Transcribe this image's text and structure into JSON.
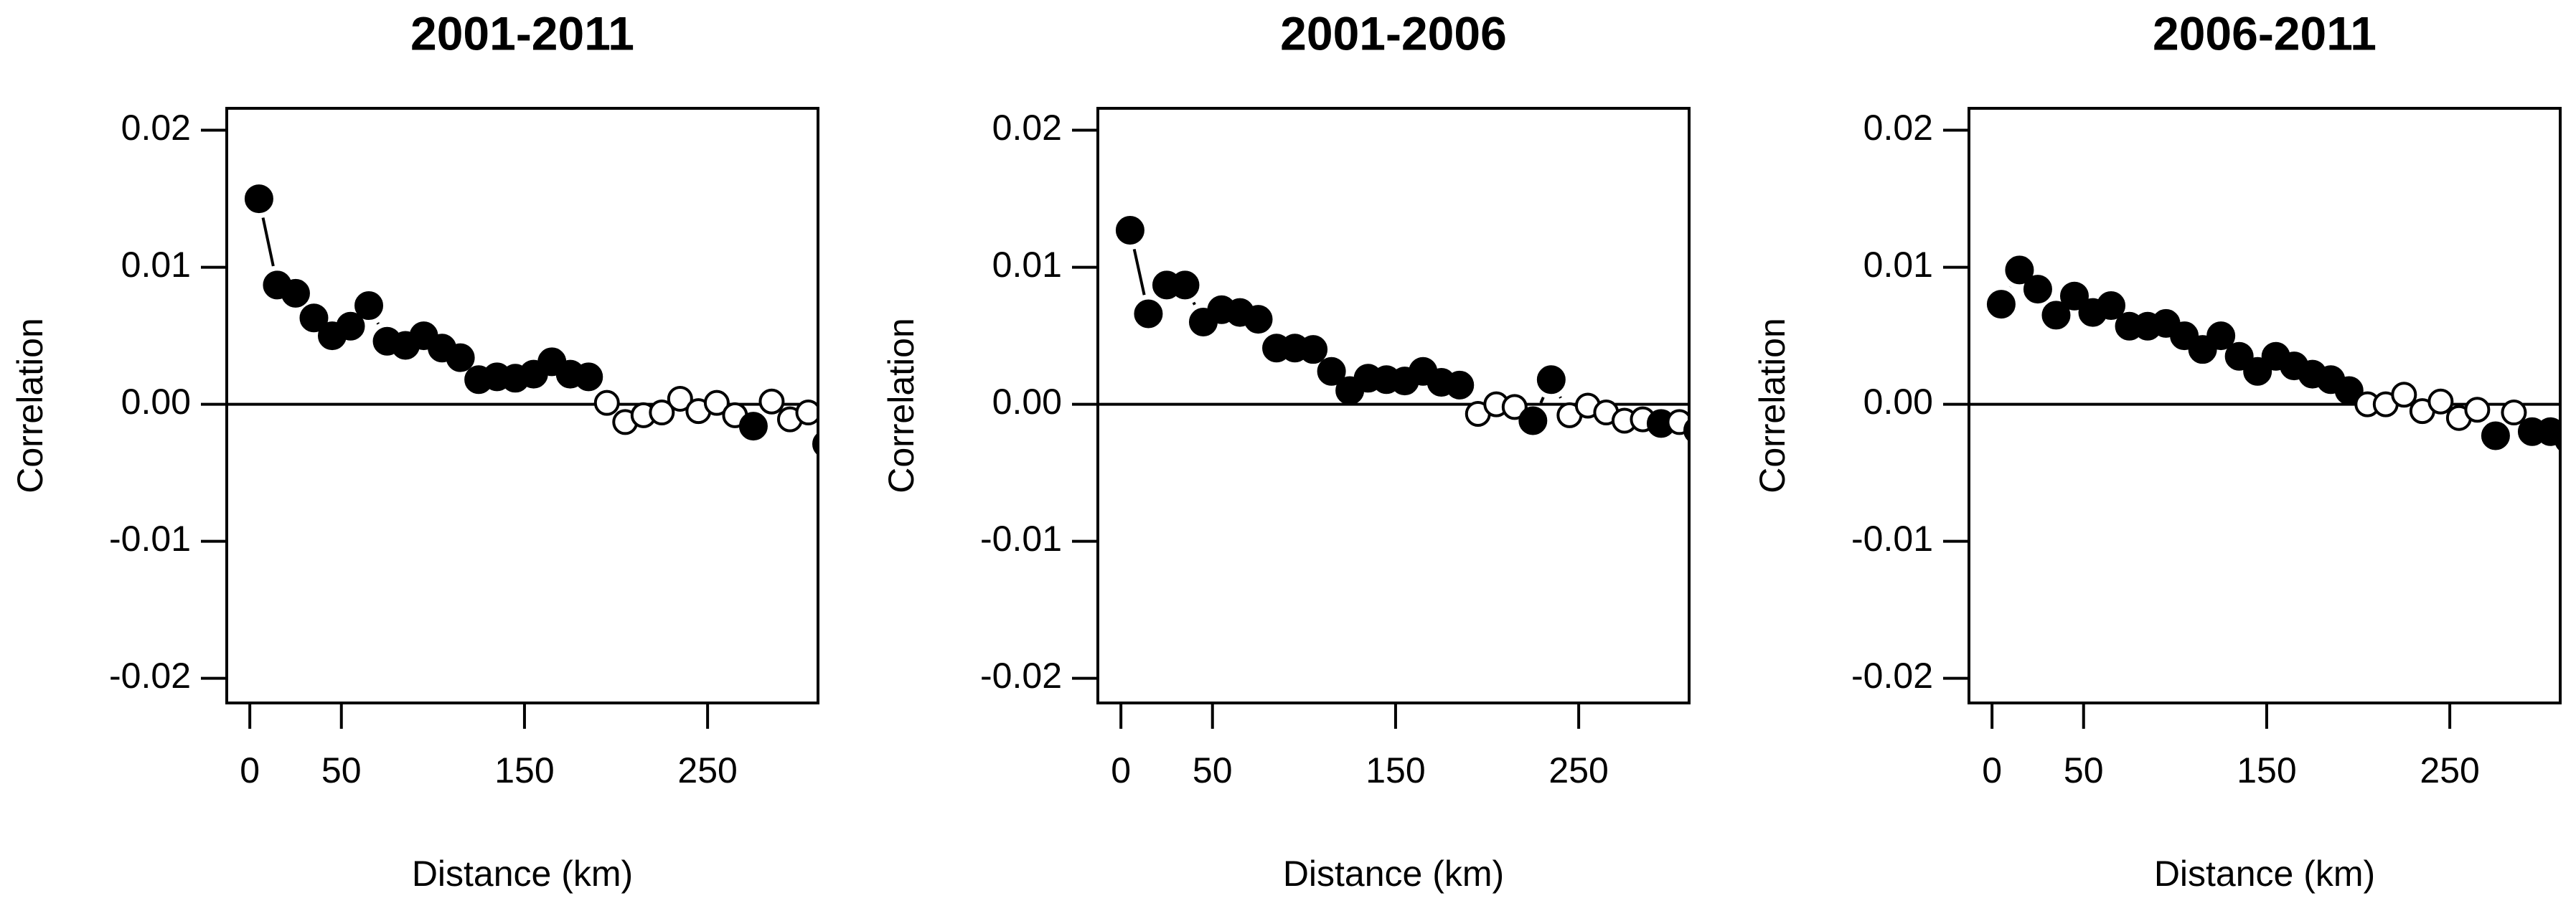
{
  "chart_data": [
    {
      "type": "scatter",
      "title": "2001-2011",
      "x_label": "Distance (km)",
      "y_label": "Correlation",
      "x": [
        5,
        15,
        25,
        35,
        45,
        55,
        65,
        75,
        85,
        95,
        105,
        115,
        125,
        135,
        145,
        155,
        165,
        175,
        185,
        195,
        205,
        215,
        225,
        235,
        245,
        255,
        265,
        275,
        285,
        295,
        305,
        315
      ],
      "values": [
        0.015,
        0.0087,
        0.0081,
        0.0063,
        0.005,
        0.0057,
        0.0072,
        0.0046,
        0.0043,
        0.005,
        0.0041,
        0.0034,
        0.0018,
        0.002,
        0.0019,
        0.0022,
        0.0031,
        0.0022,
        0.002,
        0.0001,
        -0.0013,
        -0.0008,
        -0.0006,
        0.0004,
        -0.0005,
        0.0001,
        -0.0008,
        -0.0016,
        0.0002,
        -0.0011,
        -0.0006,
        -0.0029
      ],
      "filled": [
        true,
        true,
        true,
        true,
        true,
        true,
        true,
        true,
        true,
        true,
        true,
        true,
        true,
        true,
        true,
        true,
        true,
        true,
        true,
        false,
        false,
        false,
        false,
        false,
        false,
        false,
        false,
        true,
        false,
        false,
        false,
        true
      ],
      "color": "#000000",
      "reference_line": 0,
      "xlim": [
        -12.6,
        310.3
      ],
      "xticks": [
        0,
        50,
        150,
        250
      ],
      "ylim": [
        -0.0218,
        0.0216
      ],
      "yticks": [
        0.02,
        0.01,
        {
          "value": 0,
          "label": "0.00"
        },
        -0.01,
        -0.02
      ]
    },
    {
      "type": "scatter",
      "title": "2001-2006",
      "x_label": "Distance (km)",
      "y_label": "Correlation",
      "x": [
        5,
        15,
        25,
        35,
        45,
        55,
        65,
        75,
        85,
        95,
        105,
        115,
        125,
        135,
        145,
        155,
        165,
        175,
        185,
        195,
        205,
        215,
        225,
        235,
        245,
        255,
        265,
        275,
        285,
        295,
        305,
        315
      ],
      "values": [
        0.0127,
        0.0066,
        0.0087,
        0.0087,
        0.006,
        0.0069,
        0.0067,
        0.0062,
        0.0041,
        0.0041,
        0.004,
        0.0024,
        0.001,
        0.0019,
        0.0018,
        0.0017,
        0.0024,
        0.0016,
        0.0014,
        -0.0007,
        0,
        -0.0002,
        -0.0012,
        0.0018,
        -0.0008,
        -0.0001,
        -0.0006,
        -0.0012,
        -0.0011,
        -0.0014,
        -0.0013,
        -0.0019
      ],
      "filled": [
        true,
        true,
        true,
        true,
        true,
        true,
        true,
        true,
        true,
        true,
        true,
        true,
        true,
        true,
        true,
        true,
        true,
        true,
        true,
        false,
        false,
        false,
        true,
        true,
        false,
        false,
        false,
        false,
        false,
        true,
        false,
        true
      ],
      "color": "#000000",
      "reference_line": 0,
      "xlim": [
        -12.6,
        310.3
      ],
      "xticks": [
        0,
        50,
        150,
        250
      ],
      "ylim": [
        -0.0218,
        0.0216
      ],
      "yticks": [
        0.02,
        0.01,
        {
          "value": 0,
          "label": "0.00"
        },
        -0.01,
        -0.02
      ]
    },
    {
      "type": "scatter",
      "title": "2006-2011",
      "x_label": "Distance (km)",
      "y_label": "Correlation",
      "x": [
        5,
        15,
        25,
        35,
        45,
        55,
        65,
        75,
        85,
        95,
        105,
        115,
        125,
        135,
        145,
        155,
        165,
        175,
        185,
        195,
        205,
        215,
        225,
        235,
        245,
        255,
        265,
        275,
        285,
        295,
        305,
        315
      ],
      "values": [
        0.0073,
        0.0098,
        0.0084,
        0.0065,
        0.0079,
        0.0067,
        0.0072,
        0.0057,
        0.0057,
        0.0059,
        0.005,
        0.004,
        0.005,
        0.0035,
        0.0024,
        0.0035,
        0.0028,
        0.0022,
        0.0018,
        0.001,
        0,
        0,
        0.0007,
        -0.0005,
        0.0002,
        -0.001,
        -0.0004,
        -0.0023,
        -0.0006,
        -0.002,
        -0.002,
        -0.0026
      ],
      "filled": [
        true,
        true,
        true,
        true,
        true,
        true,
        true,
        true,
        true,
        true,
        true,
        true,
        true,
        true,
        true,
        true,
        true,
        true,
        true,
        true,
        false,
        false,
        false,
        false,
        false,
        false,
        false,
        true,
        false,
        true,
        true,
        true
      ],
      "color": "#000000",
      "reference_line": 0,
      "xlim": [
        -12.6,
        310.3
      ],
      "xticks": [
        0,
        50,
        150,
        250
      ],
      "ylim": [
        -0.0218,
        0.0216
      ],
      "yticks": [
        0.02,
        0.01,
        {
          "value": 0,
          "label": "0.00"
        },
        -0.01,
        -0.02
      ]
    }
  ]
}
